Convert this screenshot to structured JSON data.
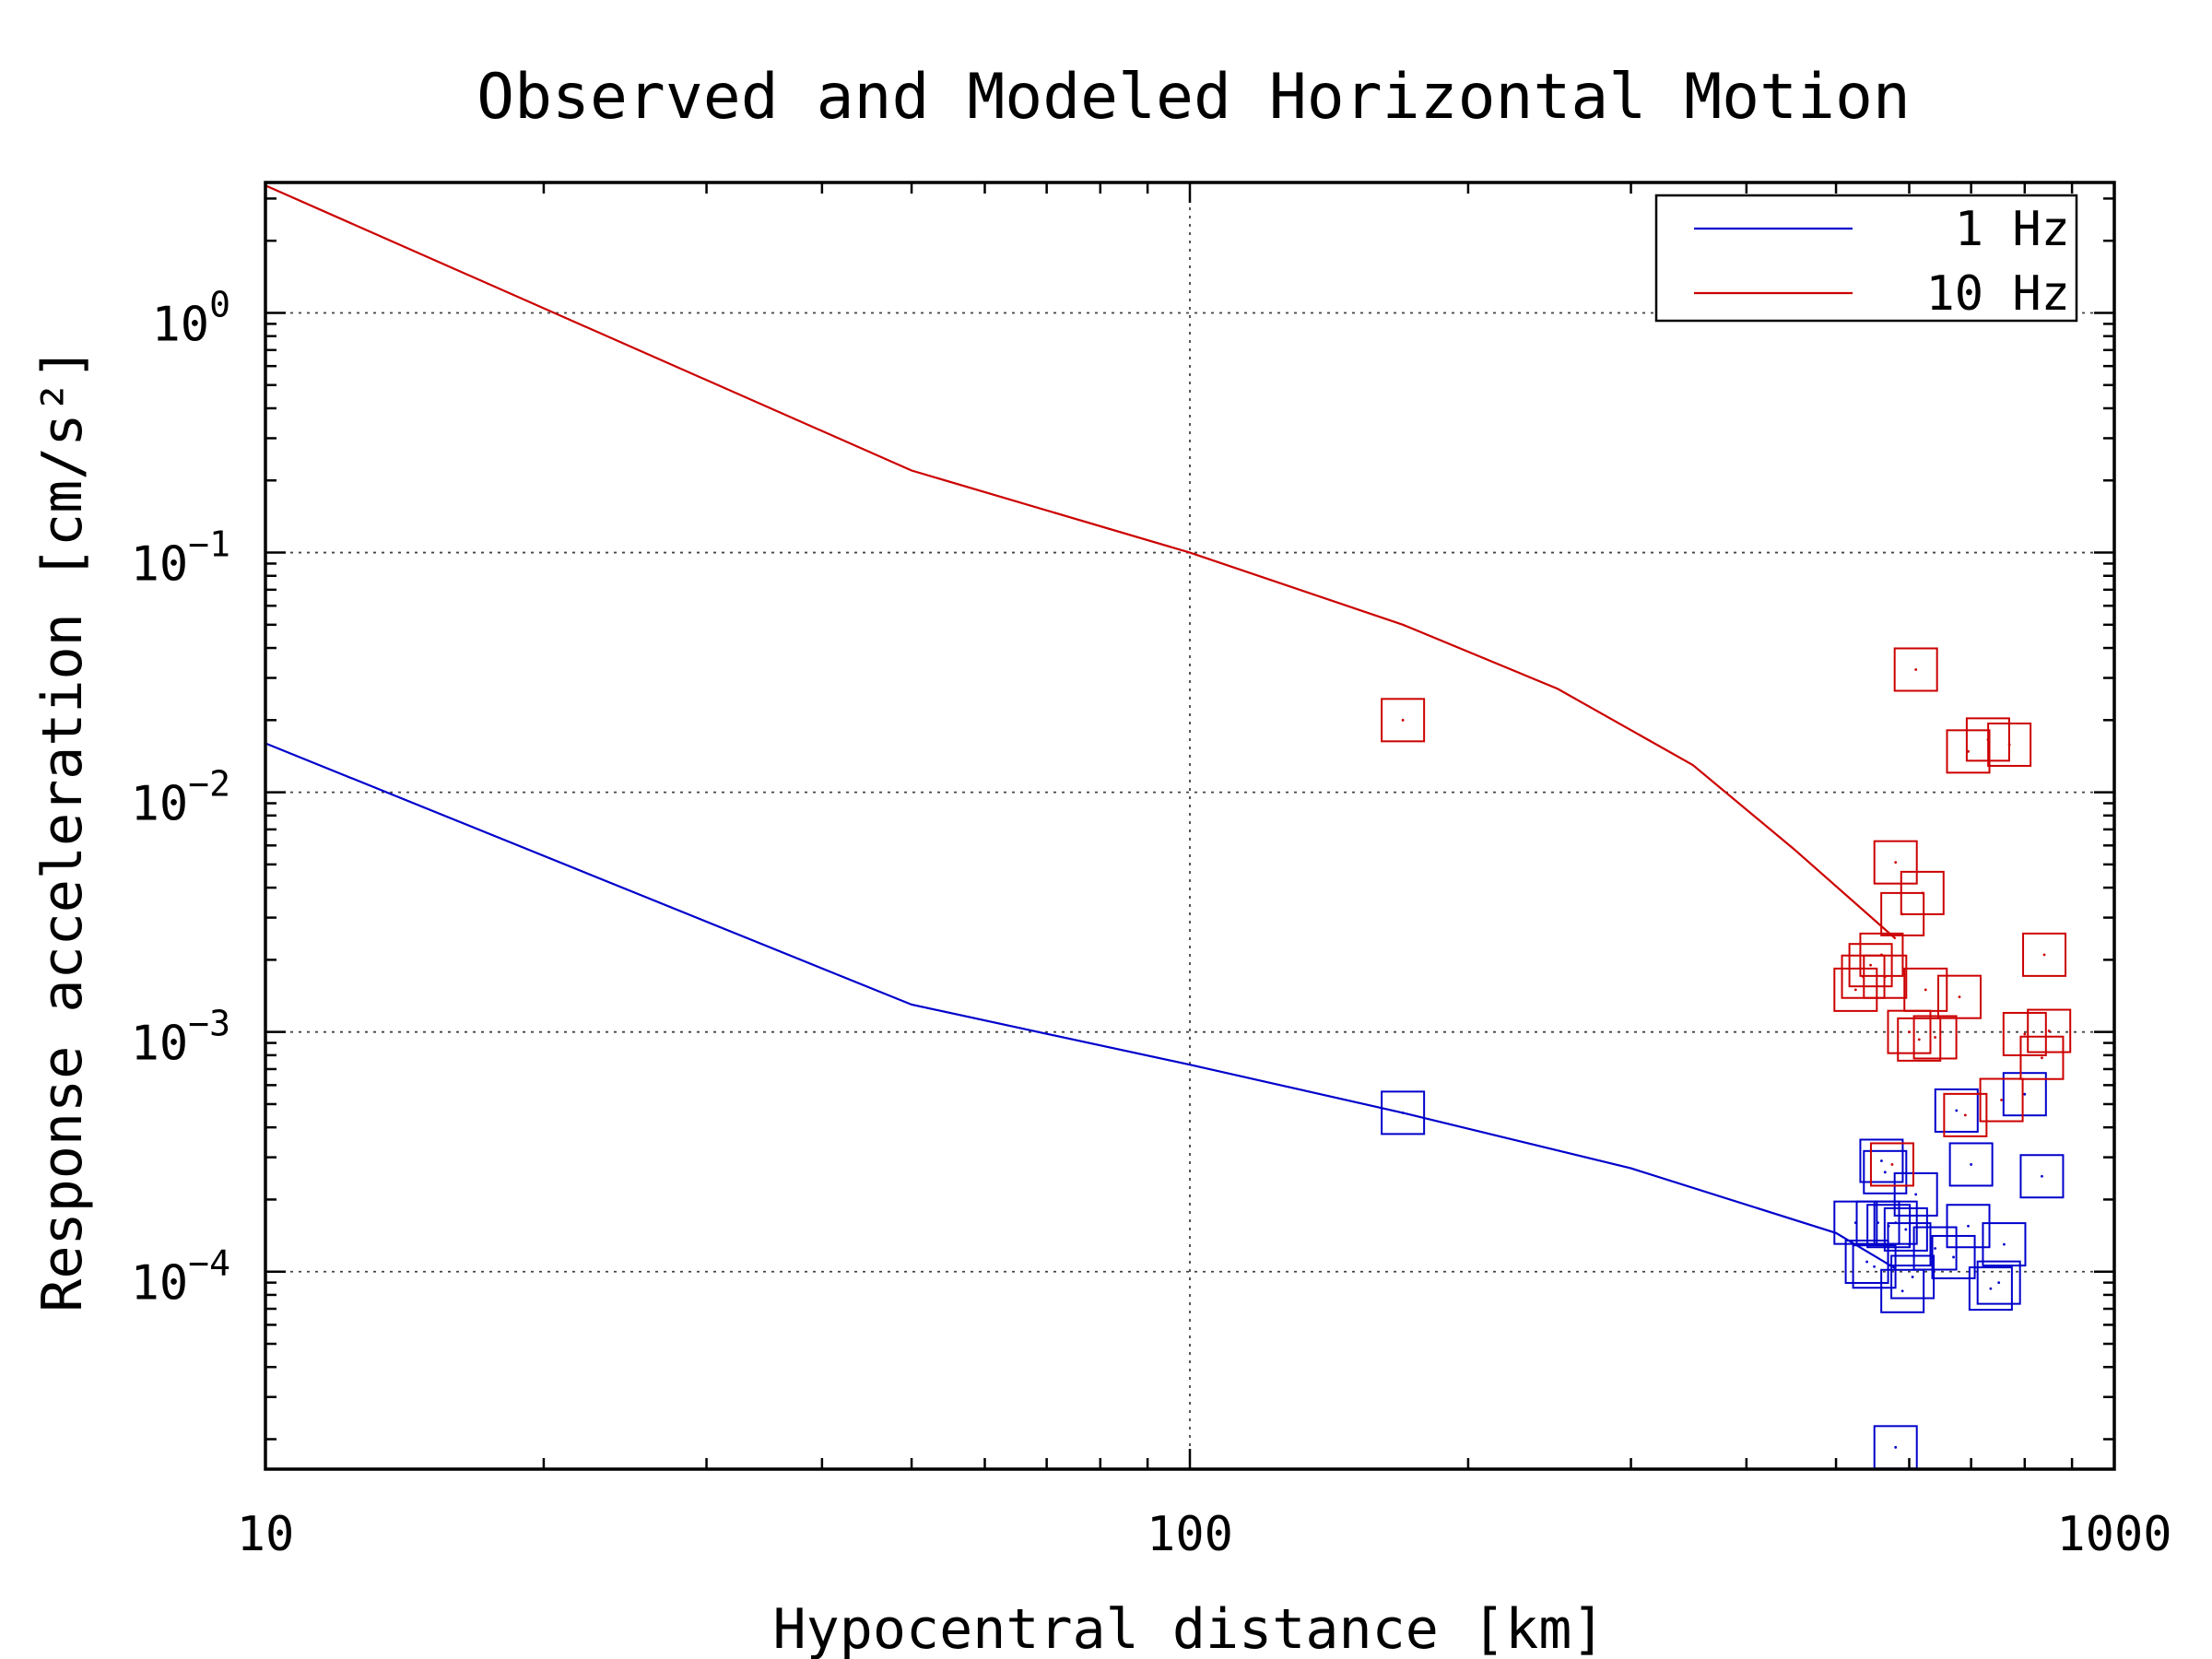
{
  "chart_data": {
    "type": "scatter",
    "title": "Observed and Modeled Horizontal Motion",
    "xlabel": "Hypocentral distance [km]",
    "ylabel": "Response acceleration [cm/s²]",
    "xscale": "log",
    "yscale": "log",
    "xlim": [
      10,
      1000
    ],
    "ylim": [
      1.5e-05,
      3.5
    ],
    "xticks": [
      {
        "value": 10,
        "label": "10"
      },
      {
        "value": 100,
        "label": "100"
      },
      {
        "value": 1000,
        "label": "1000"
      }
    ],
    "yticks": [
      {
        "value": 1,
        "base": "10",
        "exp": "0"
      },
      {
        "value": 0.1,
        "base": "10",
        "exp": "−1"
      },
      {
        "value": 0.01,
        "base": "10",
        "exp": "−2"
      },
      {
        "value": 0.001,
        "base": "10",
        "exp": "−3"
      },
      {
        "value": 0.0001,
        "base": "10",
        "exp": "−4"
      }
    ],
    "grid": true,
    "legend_position": "top-right",
    "series": [
      {
        "name": "1 Hz",
        "color": "#0000cc",
        "line": {
          "x": [
            10,
            50,
            100,
            170,
            300,
            500,
            580
          ],
          "y": [
            0.016,
            0.0013,
            0.00073,
            0.00046,
            0.00027,
            0.000145,
            0.000103
          ]
        },
        "points": {
          "x": [
            170,
            525,
            540,
            555,
            560,
            565,
            570,
            580,
            590,
            595,
            600,
            605,
            610,
            640,
            670,
            675,
            695,
            700,
            735,
            750,
            760,
            800,
            835,
            550
          ],
          "y": [
            0.00046,
            0.00016,
            0.00011,
            0.00016,
            0.00029,
            0.00026,
            0.000155,
            0.00016,
            8.3e-05,
            0.00015,
            0.00013,
            9.5e-05,
            0.00021,
            0.000125,
            0.000115,
            0.00047,
            0.000155,
            0.00028,
            8.5e-05,
            9e-05,
            0.00013,
            0.00055,
            0.00025,
            0.000105
          ]
        },
        "outlier": {
          "x": 580,
          "y": 1.85e-05
        }
      },
      {
        "name": "10 Hz",
        "color": "#cc0000",
        "line": {
          "x": [
            10,
            50,
            100,
            170,
            250,
            350,
            450,
            580
          ],
          "y": [
            3.4,
            0.22,
            0.1,
            0.05,
            0.027,
            0.013,
            0.0058,
            0.00245
          ]
        },
        "points": {
          "x": [
            170,
            525,
            535,
            545,
            560,
            565,
            575,
            580,
            590,
            600,
            615,
            620,
            625,
            640,
            680,
            690,
            695,
            730,
            755,
            770,
            800,
            835,
            840,
            850
          ],
          "y": [
            0.02,
            0.0015,
            0.0017,
            0.0019,
            0.0021,
            0.0017,
            0.00028,
            0.0051,
            0.0031,
            0.001,
            0.00093,
            0.0038,
            0.0015,
            0.00095,
            0.0014,
            0.00045,
            0.0148,
            0.0166,
            0.00052,
            0.0158,
            0.00098,
            0.00078,
            0.0021,
            0.00101
          ]
        },
        "outlier": {
          "x": 610,
          "y": 0.0325
        }
      }
    ]
  }
}
